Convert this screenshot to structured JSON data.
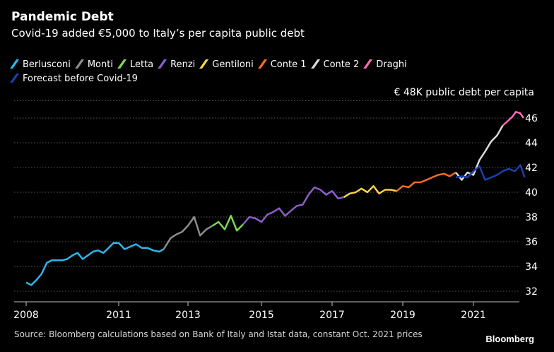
{
  "chart_data": {
    "type": "line",
    "title": "Pandemic Debt",
    "subtitle": "Covid-19 added €5,000 to Italy’s per capita public debt",
    "y_unit_label": "€ 48K public debt per capita",
    "source": "Source: Bloomberg calculations based on Bank of Italy and Istat data, constant Oct. 2021 prices",
    "brand": "Bloomberg",
    "x_ticks": [
      "2008",
      "2011",
      "2013",
      "2015",
      "2017",
      "2019",
      "2021"
    ],
    "y_ticks": [
      "32",
      "34",
      "36",
      "38",
      "40",
      "42",
      "44",
      "46"
    ],
    "xlim": [
      2008.0,
      2022.0
    ],
    "ylim": [
      31.0,
      47.5
    ],
    "grid": "horizontal-dotted",
    "legend_position": "top",
    "series": [
      {
        "name": "Berlusconi",
        "color": "#2cb7e8",
        "points": [
          [
            2008.0,
            32.7
          ],
          [
            2008.17,
            32.5
          ],
          [
            2008.33,
            32.9
          ],
          [
            2008.5,
            33.4
          ],
          [
            2008.67,
            34.3
          ],
          [
            2008.83,
            34.5
          ],
          [
            2009.0,
            34.5
          ],
          [
            2009.17,
            34.5
          ],
          [
            2009.33,
            34.6
          ],
          [
            2009.5,
            34.9
          ],
          [
            2009.67,
            35.1
          ],
          [
            2009.83,
            34.6
          ],
          [
            2010.0,
            34.9
          ],
          [
            2010.17,
            35.2
          ],
          [
            2010.33,
            35.3
          ],
          [
            2010.5,
            35.1
          ],
          [
            2010.67,
            35.5
          ],
          [
            2010.83,
            35.9
          ],
          [
            2011.0,
            35.9
          ],
          [
            2011.17,
            35.4
          ],
          [
            2011.33,
            35.6
          ],
          [
            2011.5,
            35.8
          ],
          [
            2011.67,
            35.5
          ],
          [
            2011.83,
            35.5
          ],
          [
            2012.0,
            35.3
          ],
          [
            2012.17,
            35.2
          ],
          [
            2012.3,
            35.4
          ]
        ]
      },
      {
        "name": "Monti",
        "color": "#8c8c8c",
        "points": [
          [
            2012.3,
            35.4
          ],
          [
            2012.5,
            36.3
          ],
          [
            2012.67,
            36.6
          ],
          [
            2012.83,
            36.8
          ],
          [
            2013.0,
            37.3
          ],
          [
            2013.17,
            38.0
          ],
          [
            2013.33,
            36.5
          ],
          [
            2013.5,
            37.0
          ],
          [
            2013.67,
            37.3
          ]
        ]
      },
      {
        "name": "Letta",
        "color": "#7ed957",
        "points": [
          [
            2013.67,
            37.3
          ],
          [
            2013.83,
            37.6
          ],
          [
            2014.0,
            37.0
          ],
          [
            2014.17,
            38.1
          ],
          [
            2014.33,
            36.9
          ],
          [
            2014.5,
            37.4
          ]
        ]
      },
      {
        "name": "Renzi",
        "color": "#8c5fc7",
        "points": [
          [
            2014.5,
            37.4
          ],
          [
            2014.67,
            38.0
          ],
          [
            2014.83,
            37.9
          ],
          [
            2015.0,
            37.6
          ],
          [
            2015.17,
            38.2
          ],
          [
            2015.33,
            38.4
          ],
          [
            2015.5,
            38.7
          ],
          [
            2015.67,
            38.1
          ],
          [
            2015.83,
            38.5
          ],
          [
            2016.0,
            38.9
          ],
          [
            2016.17,
            39.0
          ],
          [
            2016.33,
            39.8
          ],
          [
            2016.5,
            40.4
          ],
          [
            2016.67,
            40.2
          ],
          [
            2016.83,
            39.8
          ],
          [
            2017.0,
            40.1
          ],
          [
            2017.17,
            39.5
          ],
          [
            2017.33,
            39.6
          ]
        ]
      },
      {
        "name": "Gentiloni",
        "color": "#f5d347",
        "points": [
          [
            2017.33,
            39.6
          ],
          [
            2017.5,
            39.9
          ],
          [
            2017.67,
            40.0
          ],
          [
            2017.83,
            40.3
          ],
          [
            2018.0,
            40.0
          ],
          [
            2018.17,
            40.5
          ],
          [
            2018.33,
            39.9
          ],
          [
            2018.5,
            40.2
          ],
          [
            2018.67,
            40.2
          ],
          [
            2018.83,
            40.1
          ]
        ]
      },
      {
        "name": "Conte 1",
        "color": "#f26d21",
        "points": [
          [
            2018.83,
            40.1
          ],
          [
            2019.0,
            40.5
          ],
          [
            2019.17,
            40.4
          ],
          [
            2019.33,
            40.8
          ],
          [
            2019.5,
            40.8
          ],
          [
            2019.67,
            41.0
          ],
          [
            2019.83,
            41.2
          ],
          [
            2020.0,
            41.4
          ],
          [
            2020.17,
            41.5
          ],
          [
            2020.33,
            41.3
          ],
          [
            2020.5,
            41.6
          ]
        ]
      },
      {
        "name": "Conte 2",
        "color": "#d9d9d9",
        "points": [
          [
            2020.5,
            41.6
          ],
          [
            2020.67,
            41.0
          ],
          [
            2020.83,
            41.6
          ],
          [
            2021.0,
            41.4
          ],
          [
            2021.17,
            42.6
          ],
          [
            2021.33,
            43.3
          ],
          [
            2021.5,
            44.1
          ],
          [
            2021.67,
            44.6
          ],
          [
            2021.83,
            45.4
          ]
        ]
      },
      {
        "name": "Draghi",
        "color": "#ff69b4",
        "points": [
          [
            2021.83,
            45.4
          ],
          [
            2021.95,
            45.7
          ],
          [
            2022.1,
            46.1
          ],
          [
            2022.2,
            46.5
          ],
          [
            2022.32,
            46.4
          ],
          [
            2022.42,
            46.0
          ]
        ]
      },
      {
        "name": "Forecast before Covid-19",
        "color": "#1f3fae",
        "points": [
          [
            2020.5,
            41.2
          ],
          [
            2020.67,
            41.3
          ],
          [
            2020.83,
            41.2
          ],
          [
            2021.0,
            41.7
          ],
          [
            2021.17,
            42.1
          ],
          [
            2021.33,
            41.0
          ],
          [
            2021.5,
            41.2
          ],
          [
            2021.67,
            41.4
          ],
          [
            2021.83,
            41.7
          ],
          [
            2022.0,
            41.9
          ],
          [
            2022.17,
            41.7
          ],
          [
            2022.33,
            42.2
          ],
          [
            2022.45,
            41.2
          ]
        ]
      }
    ]
  }
}
